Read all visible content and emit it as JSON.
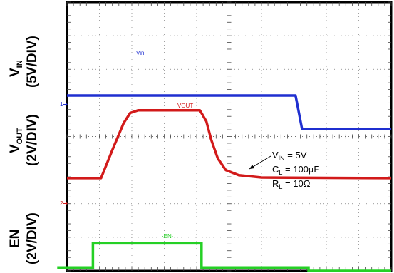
{
  "chart_data": {
    "type": "line",
    "title": "",
    "xlabel": "",
    "grid": true,
    "x": {
      "divisions": 10
    },
    "y": {
      "divisions": 8
    },
    "channels": [
      {
        "id": "vin",
        "label_main": "V",
        "label_sub": "IN",
        "scale": "(5V/DIV)",
        "trace_tag": "Vin",
        "marker": "1",
        "color": "#1f2fd0",
        "points": [
          [
            0,
            5.22
          ],
          [
            7.05,
            5.22
          ],
          [
            7.25,
            4.22
          ],
          [
            10,
            4.22
          ]
        ]
      },
      {
        "id": "vout",
        "label_main": "V",
        "label_sub": "OUT",
        "scale": "(2V/DIV)",
        "trace_tag": "VOUT",
        "marker": "2",
        "color": "#d21a1a",
        "points": [
          [
            0,
            2.76
          ],
          [
            1.05,
            2.76
          ],
          [
            1.4,
            3.6
          ],
          [
            1.75,
            4.4
          ],
          [
            1.95,
            4.7
          ],
          [
            2.2,
            4.78
          ],
          [
            4.1,
            4.78
          ],
          [
            4.3,
            4.45
          ],
          [
            4.45,
            3.9
          ],
          [
            4.65,
            3.35
          ],
          [
            4.9,
            3.0
          ],
          [
            5.3,
            2.85
          ],
          [
            6.0,
            2.78
          ],
          [
            10,
            2.76
          ]
        ]
      },
      {
        "id": "en",
        "label_main": "EN",
        "label_sub": "",
        "scale": "(2V/DIV)",
        "trace_tag": "EN",
        "marker": "",
        "color": "#25d025",
        "points": [
          [
            -0.3,
            0.1
          ],
          [
            0.8,
            0.1
          ],
          [
            0.8,
            0.82
          ],
          [
            4.15,
            0.82
          ],
          [
            4.15,
            0.1
          ],
          [
            7.45,
            0.1
          ],
          [
            7.45,
            0.0
          ],
          [
            10,
            0.0
          ]
        ]
      }
    ],
    "annotation": {
      "lines": [
        {
          "main": "V",
          "sub": "IN",
          "rest": " = 5V"
        },
        {
          "main": "C",
          "sub": "L",
          "rest": " = 100µF"
        },
        {
          "main": "R",
          "sub": "L",
          "rest": " = 10Ω"
        }
      ]
    }
  }
}
